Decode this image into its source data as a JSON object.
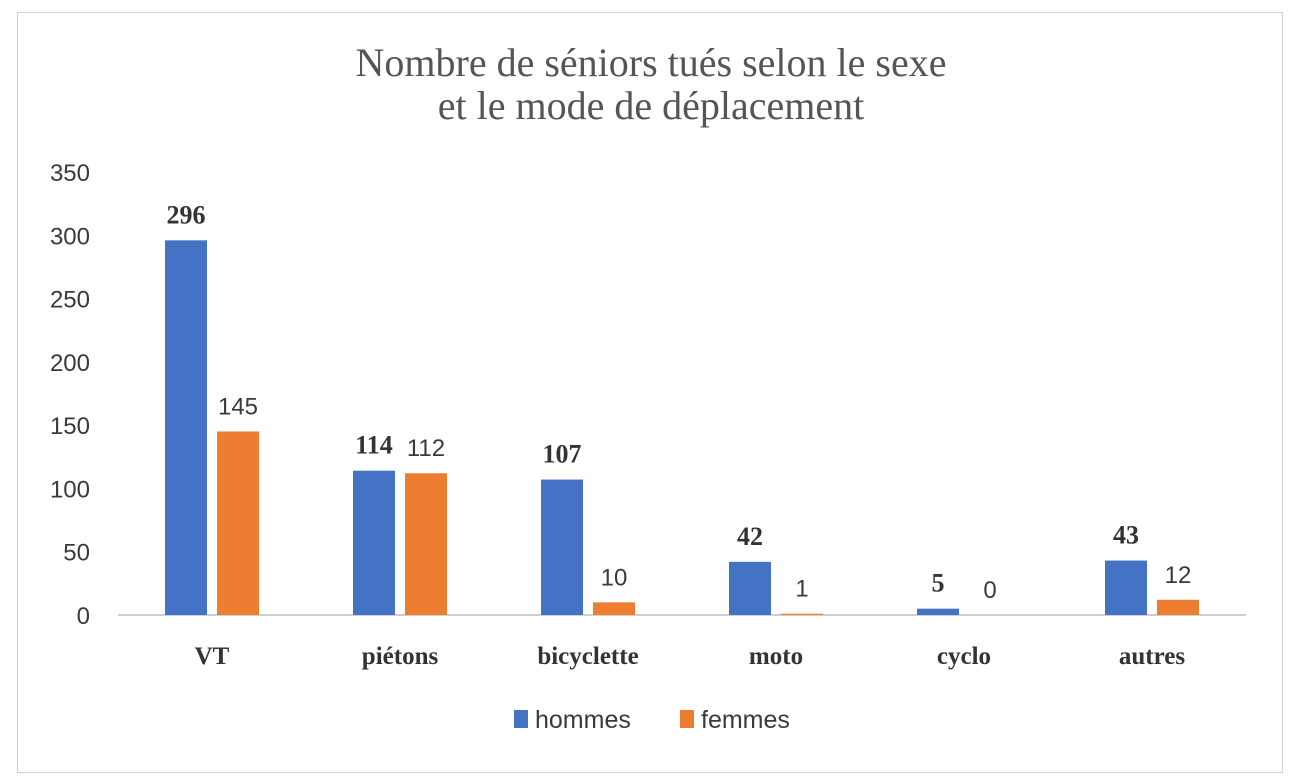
{
  "chart_data": {
    "type": "bar",
    "title_lines": [
      "Nombre de séniors tués selon le sexe",
      "et le mode de déplacement"
    ],
    "categories": [
      "VT",
      "piétons",
      "bicyclette",
      "moto",
      "cyclo",
      "autres"
    ],
    "series": [
      {
        "name": "hommes",
        "color": "#4472C4",
        "values": [
          296,
          114,
          107,
          42,
          5,
          43
        ]
      },
      {
        "name": "femmes",
        "color": "#ED7D31",
        "values": [
          145,
          112,
          10,
          1,
          0,
          12
        ]
      }
    ],
    "ylim": [
      0,
      350
    ],
    "yticks": [
      0,
      50,
      100,
      150,
      200,
      250,
      300,
      350
    ],
    "grid": false,
    "legend_position": "bottom",
    "xlabel": "",
    "ylabel": ""
  }
}
